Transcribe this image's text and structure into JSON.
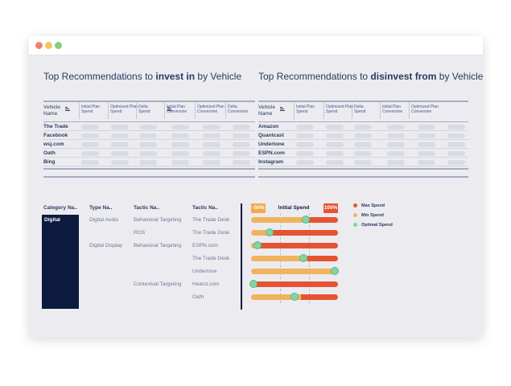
{
  "colors": {
    "navy": "#0c1a3f",
    "max_spend": "#e55432",
    "min_spend": "#f1b35e",
    "optimal_spend": "#83d3a5",
    "window_bg": "#ececf0"
  },
  "invest_panel": {
    "title_prefix": "Top Recommendations to ",
    "title_bold": "invest in",
    "title_suffix": " by Vehicle",
    "columns": [
      "Vehicle Name",
      "Initial Plan Spend",
      "Optimized Plan Spend",
      "Delta Spend",
      "Initial Plan Conversion",
      "Optimized Plan Conversion",
      "Delta Conversion"
    ],
    "rows": [
      "The Trade",
      "Facebook",
      "wsj.com",
      "Oath",
      "Bing"
    ]
  },
  "disinvest_panel": {
    "title_prefix": "Top Recommendations to ",
    "title_bold": "disinvest from",
    "title_suffix": " by Vehicle",
    "columns": [
      "Vehicle Name",
      "Initial Plan Spend",
      "Optimized Plan Spend",
      "Delta Spend",
      "Initial Plan Conversion",
      "Optimized Plan Conversion"
    ],
    "rows": [
      "Amazon",
      "Quantcast",
      "Undertone",
      "ESPN.com",
      "Instagram"
    ]
  },
  "breakdown": {
    "headers": {
      "category": "Category Na..",
      "type": "Type Na..",
      "tactic": "Tactic Na..",
      "tactic2": "Tactic Na.."
    },
    "category": "Digital",
    "types": [
      "Digital Audio",
      "Digital Display"
    ],
    "tactics": [
      "Behavioral Targeting",
      "ROS",
      "Behavioral Targeting",
      "Contextual Targeting"
    ],
    "vehicles": [
      "The Trade Desk",
      "The Trade Desk",
      "ESPN.com",
      "The Trade Desk",
      "Undertone",
      "Hearst.com",
      "Oath"
    ]
  },
  "spend_chart": {
    "title": "Initial Spend",
    "min_label": "-50%",
    "max_label": "100%",
    "rows": [
      {
        "vehicle": "The Trade Desk",
        "min": 0.65,
        "optimal": 0.63
      },
      {
        "vehicle": "The Trade Desk",
        "min": 0.22,
        "optimal": 0.21
      },
      {
        "vehicle": "ESPN.com",
        "min": 0.06,
        "optimal": 0.07
      },
      {
        "vehicle": "The Trade Desk",
        "min": 0.65,
        "optimal": 0.6
      },
      {
        "vehicle": "Undertone",
        "min": 0.98,
        "optimal": 0.96
      },
      {
        "vehicle": "Hearst.com",
        "min": 0.03,
        "optimal": 0.03
      },
      {
        "vehicle": "Oath",
        "min": 0.57,
        "optimal": 0.5
      }
    ],
    "legend": [
      "Max Spend",
      "Min Spend",
      "Optimal Spend"
    ]
  }
}
